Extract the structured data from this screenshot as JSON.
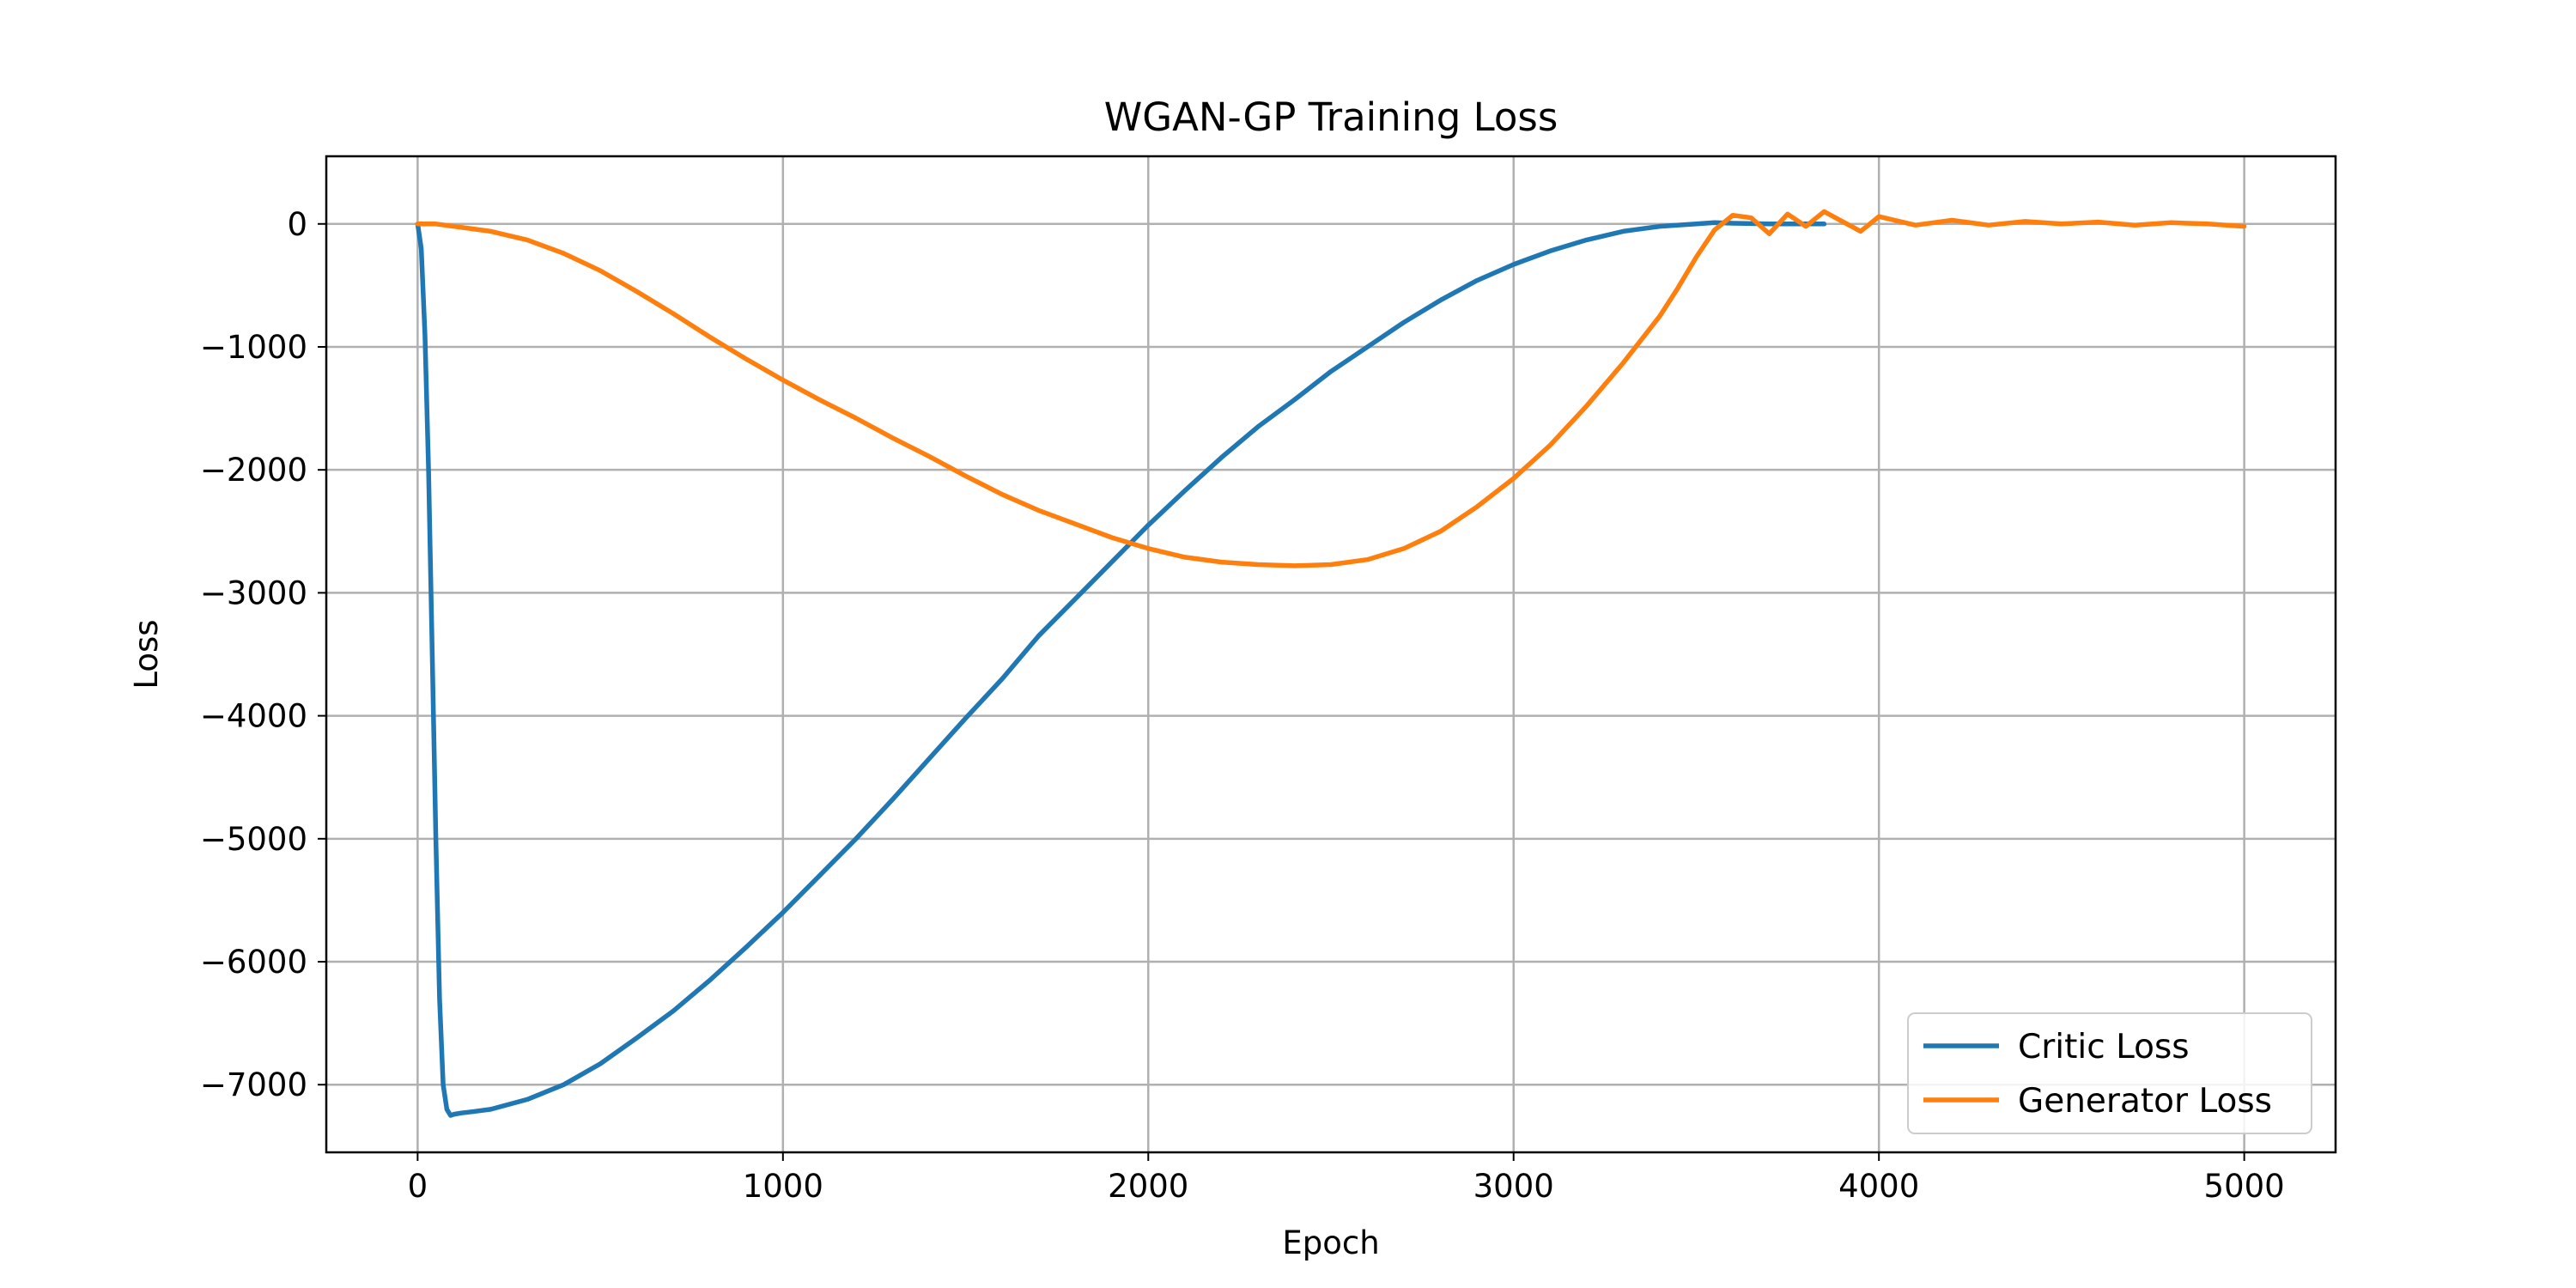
{
  "chart_data": {
    "type": "line",
    "title": "WGAN-GP Training Loss",
    "xlabel": "Epoch",
    "ylabel": "Loss",
    "xlim": [
      -250,
      5250
    ],
    "ylim": [
      -7550,
      550
    ],
    "xticks": [
      0,
      1000,
      2000,
      3000,
      4000,
      5000
    ],
    "xtick_labels": [
      "0",
      "1000",
      "2000",
      "3000",
      "4000",
      "5000"
    ],
    "yticks": [
      0,
      -1000,
      -2000,
      -3000,
      -4000,
      -5000,
      -6000,
      -7000
    ],
    "ytick_labels": [
      "0",
      "−1000",
      "−2000",
      "−3000",
      "−4000",
      "−5000",
      "−6000",
      "−7000"
    ],
    "grid": true,
    "legend_position": "lower-right",
    "series": [
      {
        "name": "Critic Loss",
        "color": "#1f77b4",
        "x": [
          0,
          10,
          20,
          30,
          40,
          50,
          60,
          70,
          80,
          90,
          100,
          120,
          150,
          200,
          300,
          400,
          500,
          600,
          700,
          800,
          900,
          1000,
          1100,
          1200,
          1300,
          1400,
          1500,
          1600,
          1700,
          1800,
          1900,
          2000,
          2100,
          2200,
          2300,
          2400,
          2500,
          2600,
          2700,
          2800,
          2900,
          3000,
          3100,
          3200,
          3300,
          3400,
          3500,
          3550,
          3600,
          3700,
          3800,
          3850
        ],
        "y": [
          0,
          -200,
          -900,
          -2000,
          -3500,
          -5000,
          -6300,
          -7000,
          -7200,
          -7250,
          -7240,
          -7230,
          -7220,
          -7200,
          -7120,
          -7000,
          -6830,
          -6620,
          -6400,
          -6150,
          -5880,
          -5600,
          -5300,
          -5000,
          -4680,
          -4350,
          -4020,
          -3700,
          -3350,
          -3050,
          -2750,
          -2450,
          -2170,
          -1900,
          -1650,
          -1430,
          -1200,
          -1000,
          -800,
          -620,
          -460,
          -330,
          -220,
          -130,
          -60,
          -20,
          0,
          10,
          5,
          0,
          0,
          0
        ]
      },
      {
        "name": "Generator Loss",
        "color": "#ff7f0e",
        "x": [
          0,
          50,
          100,
          200,
          300,
          400,
          500,
          600,
          700,
          800,
          900,
          1000,
          1100,
          1200,
          1300,
          1400,
          1500,
          1600,
          1700,
          1800,
          1900,
          2000,
          2100,
          2200,
          2300,
          2400,
          2500,
          2600,
          2700,
          2800,
          2900,
          3000,
          3100,
          3200,
          3300,
          3400,
          3450,
          3500,
          3550,
          3600,
          3650,
          3700,
          3750,
          3800,
          3850,
          3900,
          3950,
          4000,
          4100,
          4200,
          4300,
          4400,
          4500,
          4600,
          4700,
          4800,
          4900,
          5000
        ],
        "y": [
          0,
          0,
          -20,
          -60,
          -130,
          -240,
          -380,
          -550,
          -730,
          -920,
          -1100,
          -1270,
          -1430,
          -1580,
          -1740,
          -1890,
          -2050,
          -2200,
          -2330,
          -2440,
          -2550,
          -2640,
          -2710,
          -2750,
          -2770,
          -2780,
          -2770,
          -2730,
          -2640,
          -2500,
          -2300,
          -2070,
          -1800,
          -1480,
          -1130,
          -750,
          -520,
          -270,
          -50,
          70,
          50,
          -80,
          80,
          -20,
          100,
          20,
          -60,
          60,
          -10,
          30,
          -10,
          20,
          0,
          15,
          -10,
          10,
          0,
          -20
        ]
      }
    ]
  }
}
